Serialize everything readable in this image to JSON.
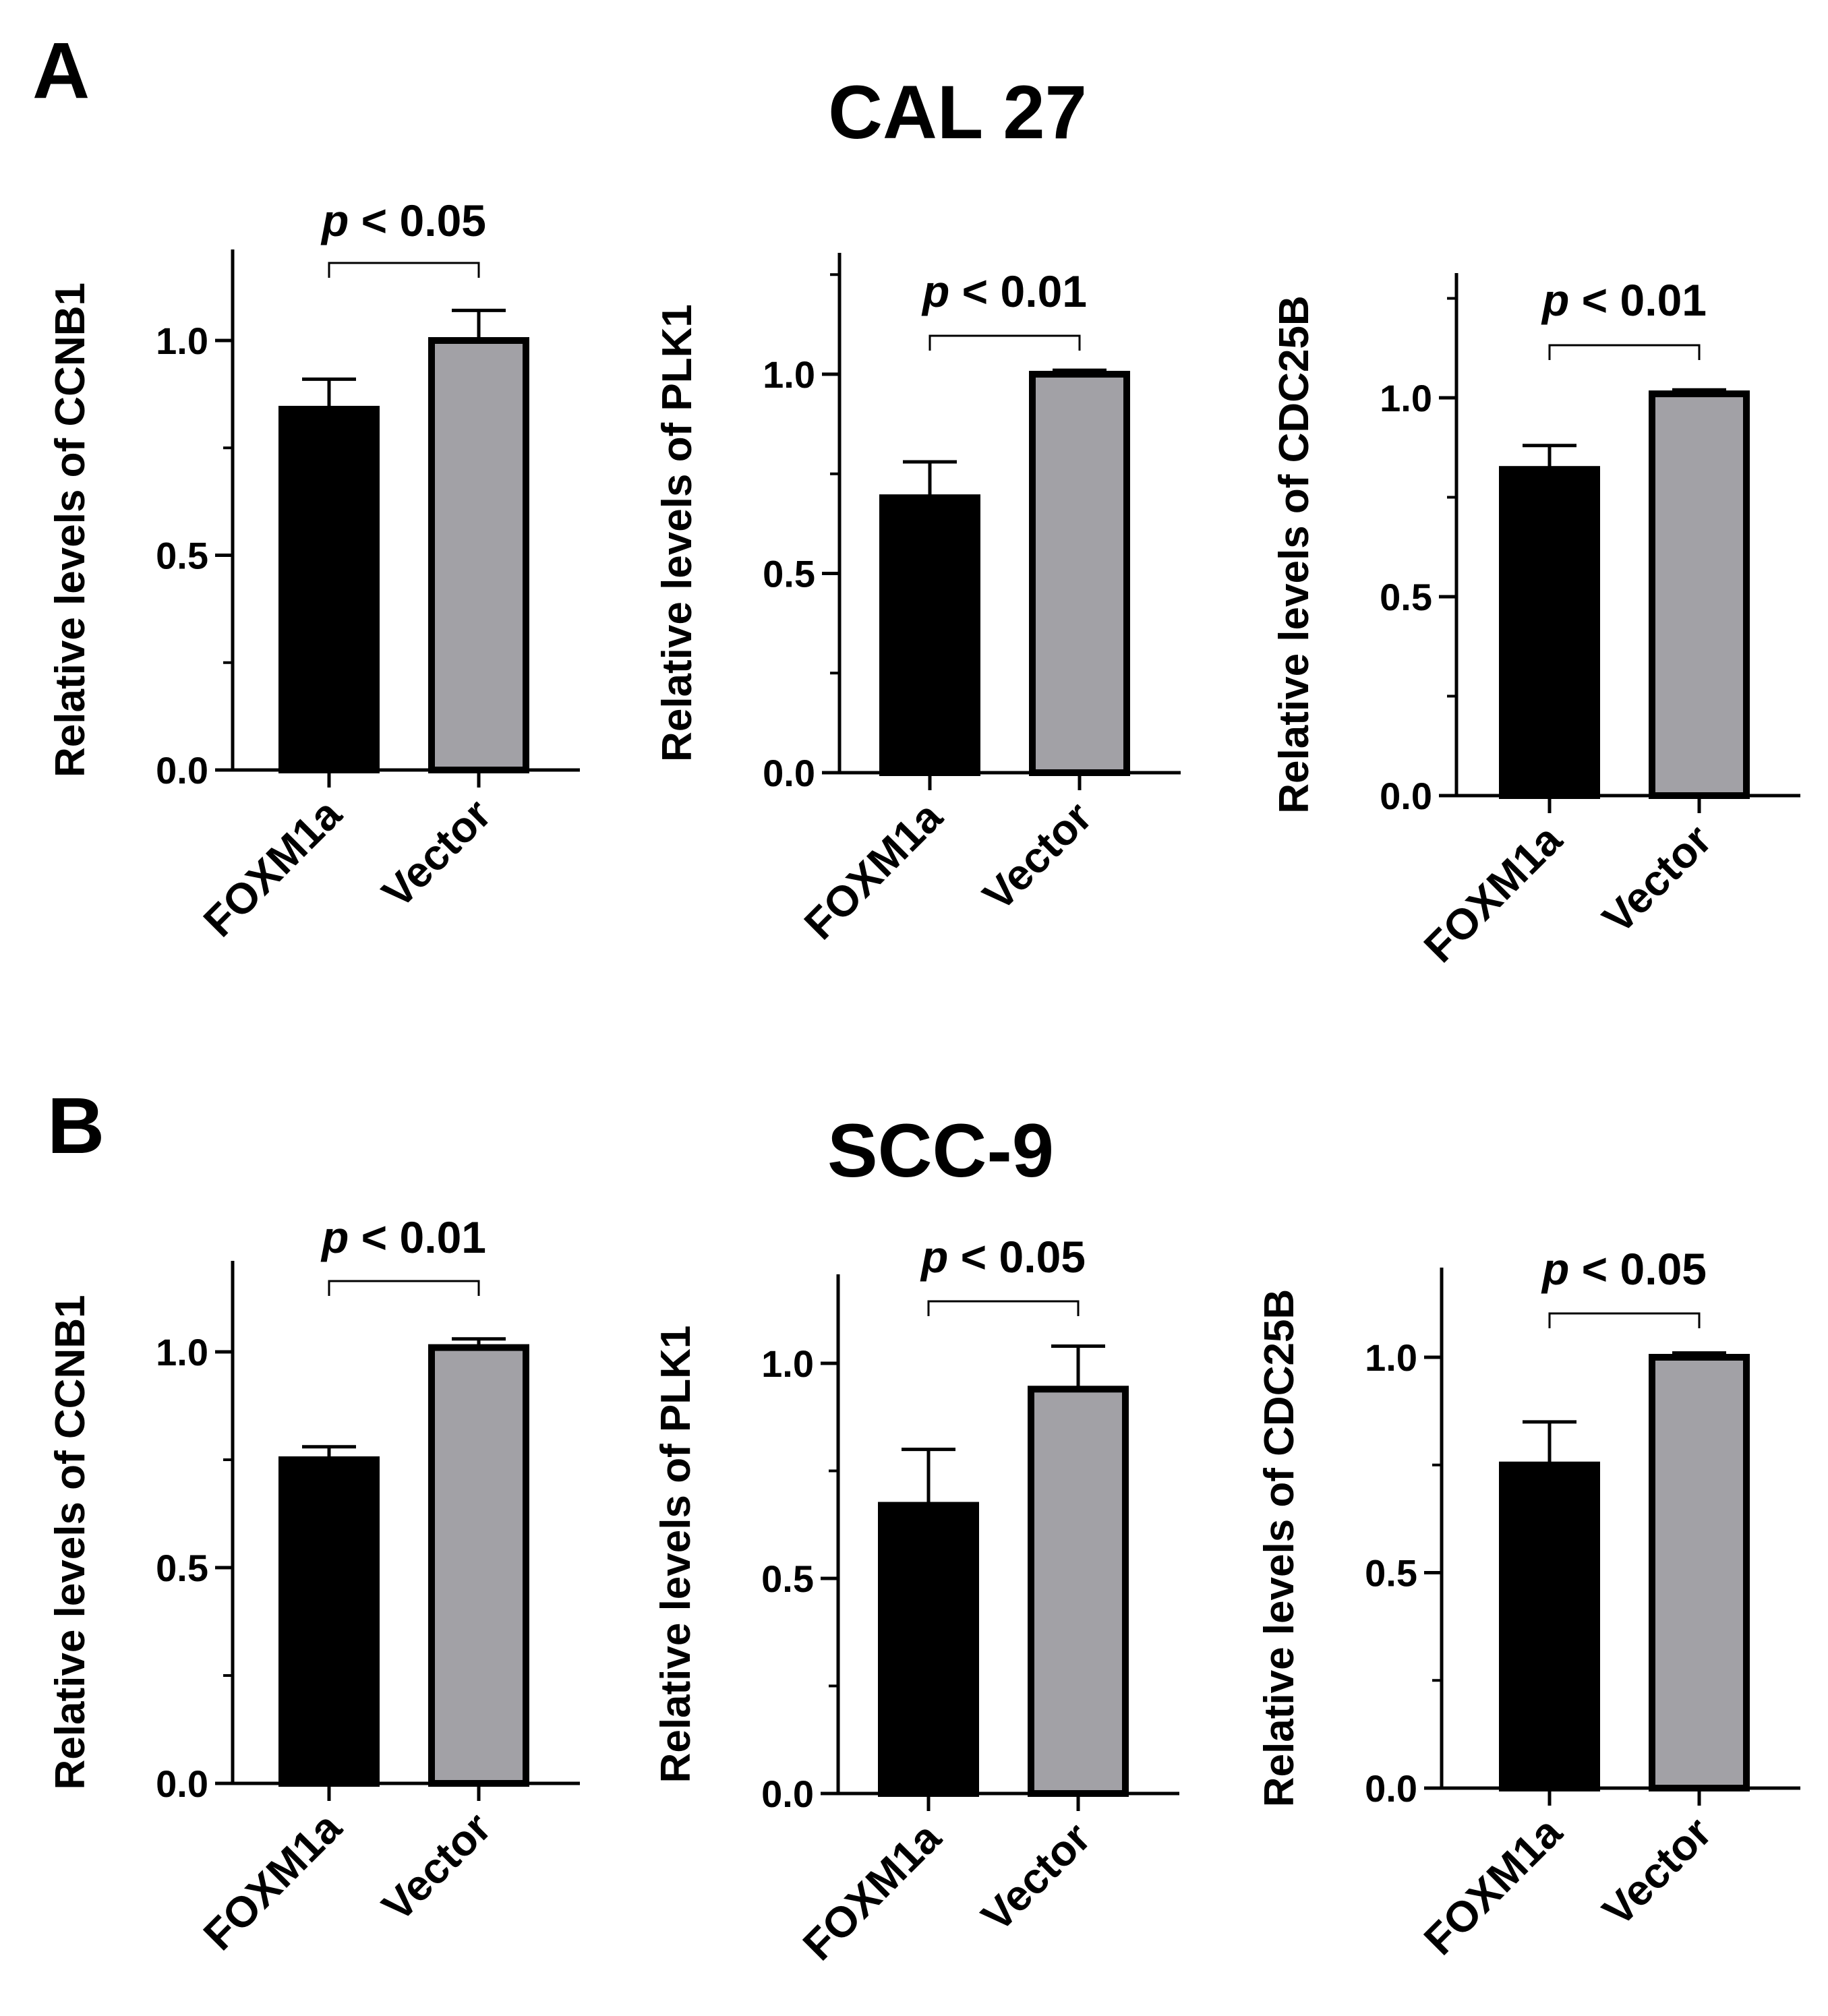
{
  "panels": [
    {
      "letter": "A",
      "title": "CAL 27"
    },
    {
      "letter": "B",
      "title": "SCC-9"
    }
  ],
  "colors": {
    "foxm1a_bar": "#000000",
    "vector_bar": "#a2a1a6",
    "axis": "#000000"
  },
  "chart_data": [
    {
      "type": "bar",
      "panel": "A",
      "title": "CAL 27",
      "ylabel": "Relative levels of CCNB1",
      "categories": [
        "FOXM1a",
        "Vector"
      ],
      "values": [
        0.84,
        1.0
      ],
      "errors": [
        0.07,
        0.07
      ],
      "ylim": [
        0,
        1.2
      ],
      "yticks": [
        "0.0",
        "0.5",
        "1.0"
      ],
      "minor_step": 0.25,
      "significance": {
        "p": "p",
        "rest": " < 0.05"
      }
    },
    {
      "type": "bar",
      "panel": "A",
      "title": "CAL 27",
      "ylabel": "Relative levels of PLK1",
      "categories": [
        "FOXM1a",
        "Vector"
      ],
      "values": [
        0.69,
        1.0
      ],
      "errors": [
        0.09,
        0.01
      ],
      "ylim": [
        0,
        1.3
      ],
      "yticks": [
        "0.0",
        "0.5",
        "1.0"
      ],
      "minor_step": 0.25,
      "significance": {
        "p": "p",
        "rest": " < 0.01"
      }
    },
    {
      "type": "bar",
      "panel": "A",
      "title": "CAL 27",
      "ylabel": "Relative levels of CDC25B",
      "categories": [
        "FOXM1a",
        "Vector"
      ],
      "values": [
        0.82,
        1.01
      ],
      "errors": [
        0.06,
        0.01
      ],
      "ylim": [
        0,
        1.3
      ],
      "yticks": [
        "0.0",
        "0.5",
        "1.0"
      ],
      "minor_step": 0.25,
      "significance": {
        "p": "p",
        "rest": " < 0.01"
      }
    },
    {
      "type": "bar",
      "panel": "B",
      "title": "SCC-9",
      "ylabel": "Relative levels of CCNB1",
      "categories": [
        "FOXM1a",
        "Vector"
      ],
      "values": [
        0.75,
        1.01
      ],
      "errors": [
        0.03,
        0.02
      ],
      "ylim": [
        0,
        1.2
      ],
      "yticks": [
        "0.0",
        "0.5",
        "1.0"
      ],
      "minor_step": 0.25,
      "significance": {
        "p": "p",
        "rest": " < 0.01"
      }
    },
    {
      "type": "bar",
      "panel": "B",
      "title": "SCC-9",
      "ylabel": "Relative levels of PLK1",
      "categories": [
        "FOXM1a",
        "Vector"
      ],
      "values": [
        0.67,
        0.94
      ],
      "errors": [
        0.13,
        0.1
      ],
      "ylim": [
        0,
        1.2
      ],
      "yticks": [
        "0.0",
        "0.5",
        "1.0"
      ],
      "minor_step": 0.25,
      "significance": {
        "p": "p",
        "rest": " < 0.05"
      }
    },
    {
      "type": "bar",
      "panel": "B",
      "title": "SCC-9",
      "ylabel": "Relative levels of CDC25B",
      "categories": [
        "FOXM1a",
        "Vector"
      ],
      "values": [
        0.75,
        1.0
      ],
      "errors": [
        0.1,
        0.01
      ],
      "ylim": [
        0,
        1.2
      ],
      "yticks": [
        "0.0",
        "0.5",
        "1.0"
      ],
      "minor_step": 0.25,
      "significance": {
        "p": "p",
        "rest": " < 0.05"
      }
    }
  ]
}
